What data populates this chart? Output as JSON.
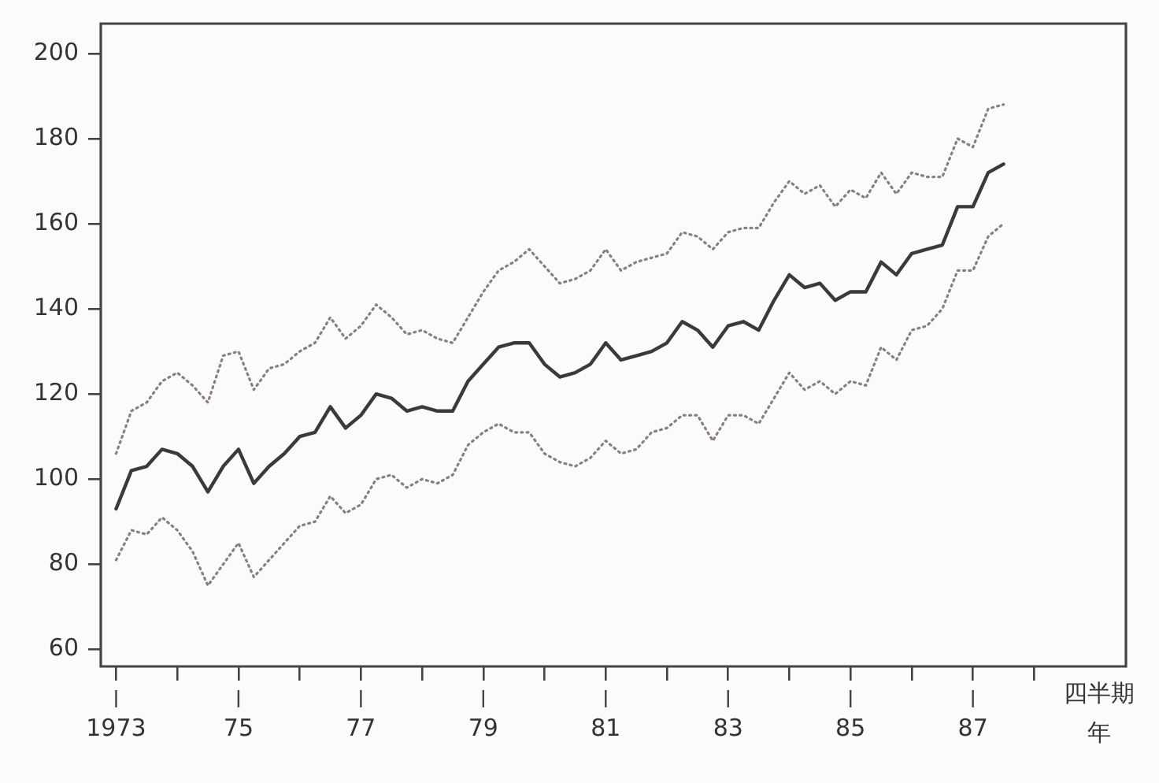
{
  "chart_data": {
    "type": "line",
    "xlabel": "四半期年",
    "x": [
      1973,
      1973.25,
      1973.5,
      1973.75,
      1974,
      1974.25,
      1974.5,
      1974.75,
      1975,
      1975.25,
      1975.5,
      1975.75,
      1976,
      1976.25,
      1976.5,
      1976.75,
      1977,
      1977.25,
      1977.5,
      1977.75,
      1978,
      1978.25,
      1978.5,
      1978.75,
      1979,
      1979.25,
      1979.5,
      1979.75,
      1980,
      1980.25,
      1980.5,
      1980.75,
      1981,
      1981.25,
      1981.5,
      1981.75,
      1982,
      1982.25,
      1982.5,
      1982.75,
      1983,
      1983.25,
      1983.5,
      1983.75,
      1984,
      1984.25,
      1984.5,
      1984.75,
      1985,
      1985.25,
      1985.5,
      1985.75,
      1986,
      1986.25,
      1986.5,
      1986.75,
      1987,
      1987.25,
      1987.5
    ],
    "series": [
      {
        "color": "#3a3a3a",
        "line_style": "solid",
        "values": [
          93,
          102,
          103,
          107,
          106,
          103,
          97,
          103,
          107,
          99,
          103,
          106,
          110,
          111,
          117,
          112,
          115,
          120,
          119,
          116,
          117,
          116,
          116,
          123,
          127,
          131,
          132,
          132,
          127,
          124,
          125,
          127,
          132,
          128,
          129,
          130,
          132,
          137,
          135,
          131,
          136,
          137,
          135,
          142,
          148,
          145,
          146,
          142,
          144,
          144,
          151,
          148,
          153,
          154,
          155,
          164,
          164,
          172,
          174
        ]
      },
      {
        "color": "#8a7d85",
        "line_style": "dotted",
        "values": [
          106,
          116,
          118,
          123,
          125,
          122,
          118,
          129,
          130,
          121,
          126,
          127,
          130,
          132,
          138,
          133,
          136,
          141,
          138,
          134,
          135,
          133,
          132,
          138,
          144,
          149,
          151,
          154,
          150,
          146,
          147,
          149,
          154,
          149,
          151,
          152,
          153,
          158,
          157,
          154,
          158,
          159,
          159,
          165,
          170,
          167,
          169,
          164,
          168,
          166,
          172,
          167,
          172,
          171,
          171,
          180,
          178,
          187,
          188
        ]
      },
      {
        "color": "#8a7d85",
        "line_style": "dotted",
        "values": [
          81,
          88,
          87,
          91,
          88,
          83,
          75,
          80,
          85,
          77,
          81,
          85,
          89,
          90,
          96,
          92,
          94,
          100,
          101,
          98,
          100,
          99,
          101,
          108,
          111,
          113,
          111,
          111,
          106,
          104,
          103,
          105,
          109,
          106,
          107,
          111,
          112,
          115,
          115,
          109,
          115,
          115,
          113,
          119,
          125,
          121,
          123,
          120,
          123,
          122,
          131,
          128,
          135,
          136,
          140,
          149,
          149,
          157,
          160
        ]
      }
    ],
    "xlim": [
      1972.75,
      1989.5
    ],
    "xticks": [
      {
        "value": 1973,
        "label": "1973"
      },
      {
        "value": 1974,
        "label": null
      },
      {
        "value": 1975,
        "label": "75"
      },
      {
        "value": 1976,
        "label": null
      },
      {
        "value": 1977,
        "label": "77"
      },
      {
        "value": 1978,
        "label": null
      },
      {
        "value": 1979,
        "label": "79"
      },
      {
        "value": 1980,
        "label": null
      },
      {
        "value": 1981,
        "label": "81"
      },
      {
        "value": 1982,
        "label": null
      },
      {
        "value": 1983,
        "label": "83"
      },
      {
        "value": 1984,
        "label": null
      },
      {
        "value": 1985,
        "label": "85"
      },
      {
        "value": 1986,
        "label": null
      },
      {
        "value": 1987,
        "label": "87"
      },
      {
        "value": 1988,
        "label": null
      }
    ],
    "ylim": [
      56,
      207
    ],
    "yticks": [
      60,
      80,
      100,
      120,
      140,
      160,
      180,
      200
    ]
  }
}
